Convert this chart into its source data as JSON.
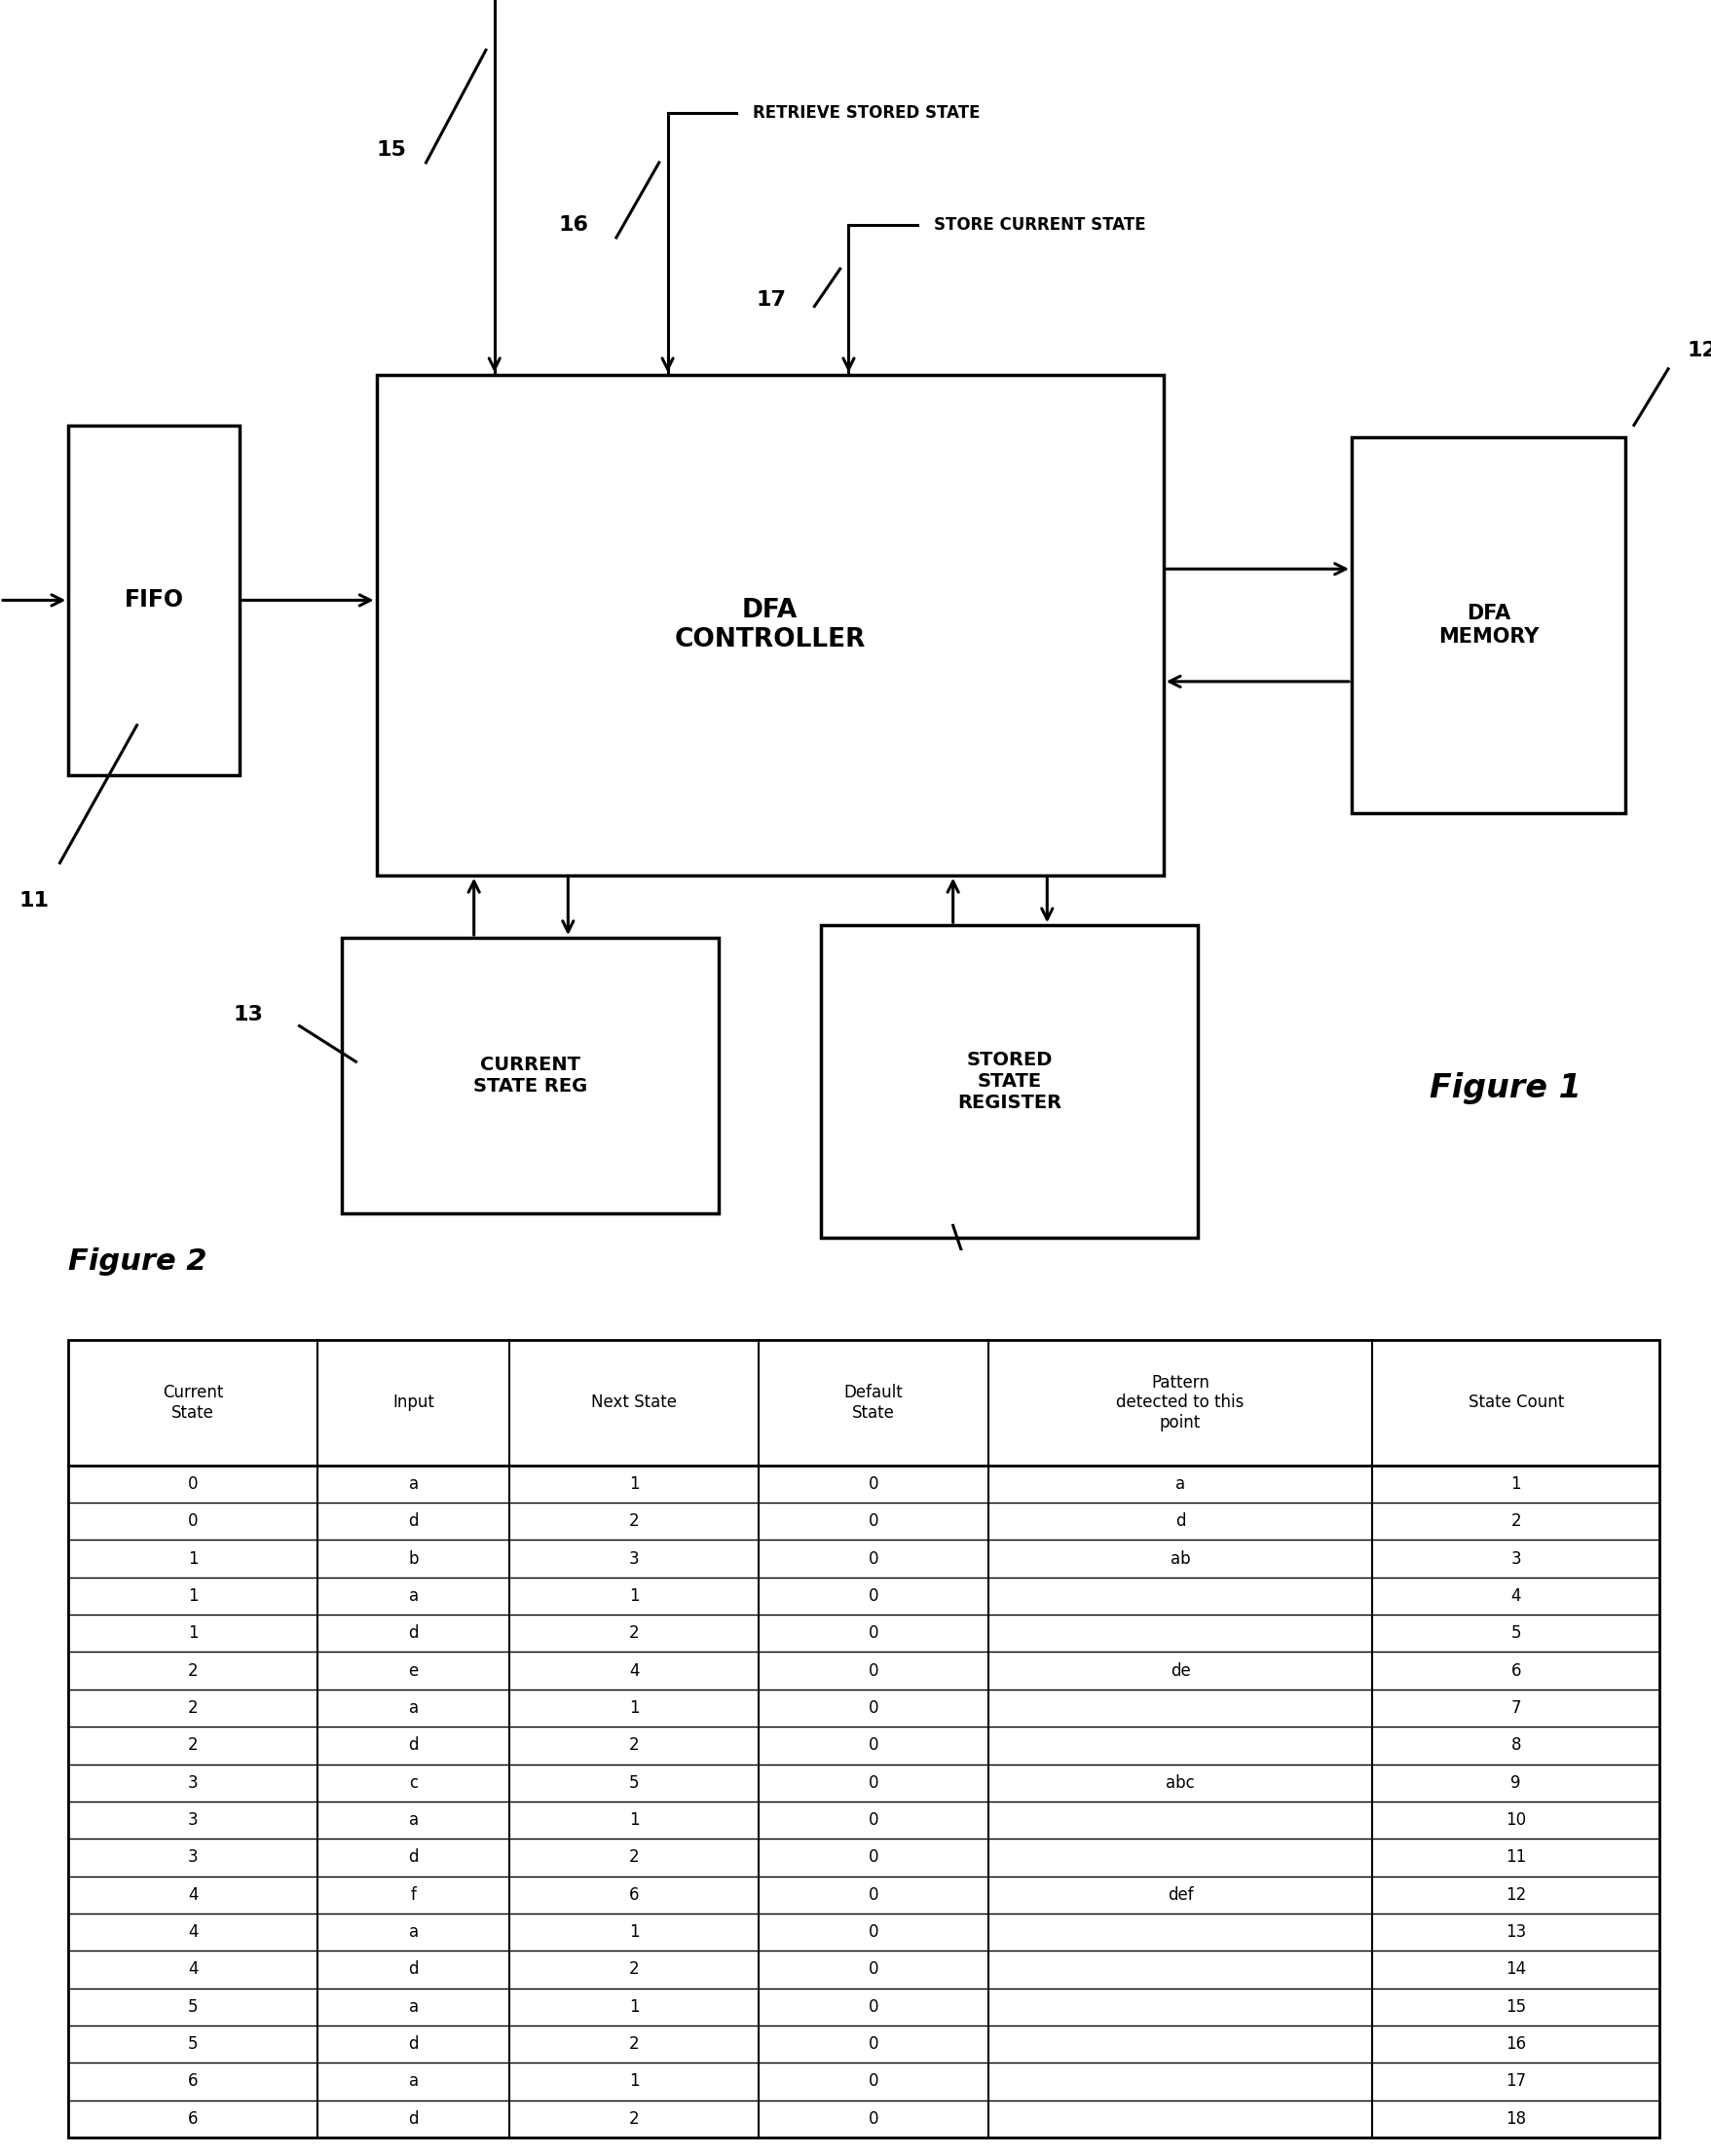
{
  "fig_width": 17.57,
  "fig_height": 22.14,
  "bg_color": "#ffffff",
  "figure1_label": "Figure 1",
  "figure2_label": "Figure 2",
  "table_header": [
    "Current\nState",
    "Input",
    "Next State",
    "Default\nState",
    "Pattern\ndetected to this\npoint",
    "State Count"
  ],
  "table_data": [
    [
      "0",
      "a",
      "1",
      "0",
      "a",
      "1"
    ],
    [
      "0",
      "d",
      "2",
      "0",
      "d",
      "2"
    ],
    [
      "1",
      "b",
      "3",
      "0",
      "ab",
      "3"
    ],
    [
      "1",
      "a",
      "1",
      "0",
      "",
      "4"
    ],
    [
      "1",
      "d",
      "2",
      "0",
      "",
      "5"
    ],
    [
      "2",
      "e",
      "4",
      "0",
      "de",
      "6"
    ],
    [
      "2",
      "a",
      "1",
      "0",
      "",
      "7"
    ],
    [
      "2",
      "d",
      "2",
      "0",
      "",
      "8"
    ],
    [
      "3",
      "c",
      "5",
      "0",
      "abc",
      "9"
    ],
    [
      "3",
      "a",
      "1",
      "0",
      "",
      "10"
    ],
    [
      "3",
      "d",
      "2",
      "0",
      "",
      "11"
    ],
    [
      "4",
      "f",
      "6",
      "0",
      "def",
      "12"
    ],
    [
      "4",
      "a",
      "1",
      "0",
      "",
      "13"
    ],
    [
      "4",
      "d",
      "2",
      "0",
      "",
      "14"
    ],
    [
      "5",
      "a",
      "1",
      "0",
      "",
      "15"
    ],
    [
      "5",
      "d",
      "2",
      "0",
      "",
      "16"
    ],
    [
      "6",
      "a",
      "1",
      "0",
      "",
      "17"
    ],
    [
      "6",
      "d",
      "2",
      "0",
      "",
      "18"
    ]
  ]
}
